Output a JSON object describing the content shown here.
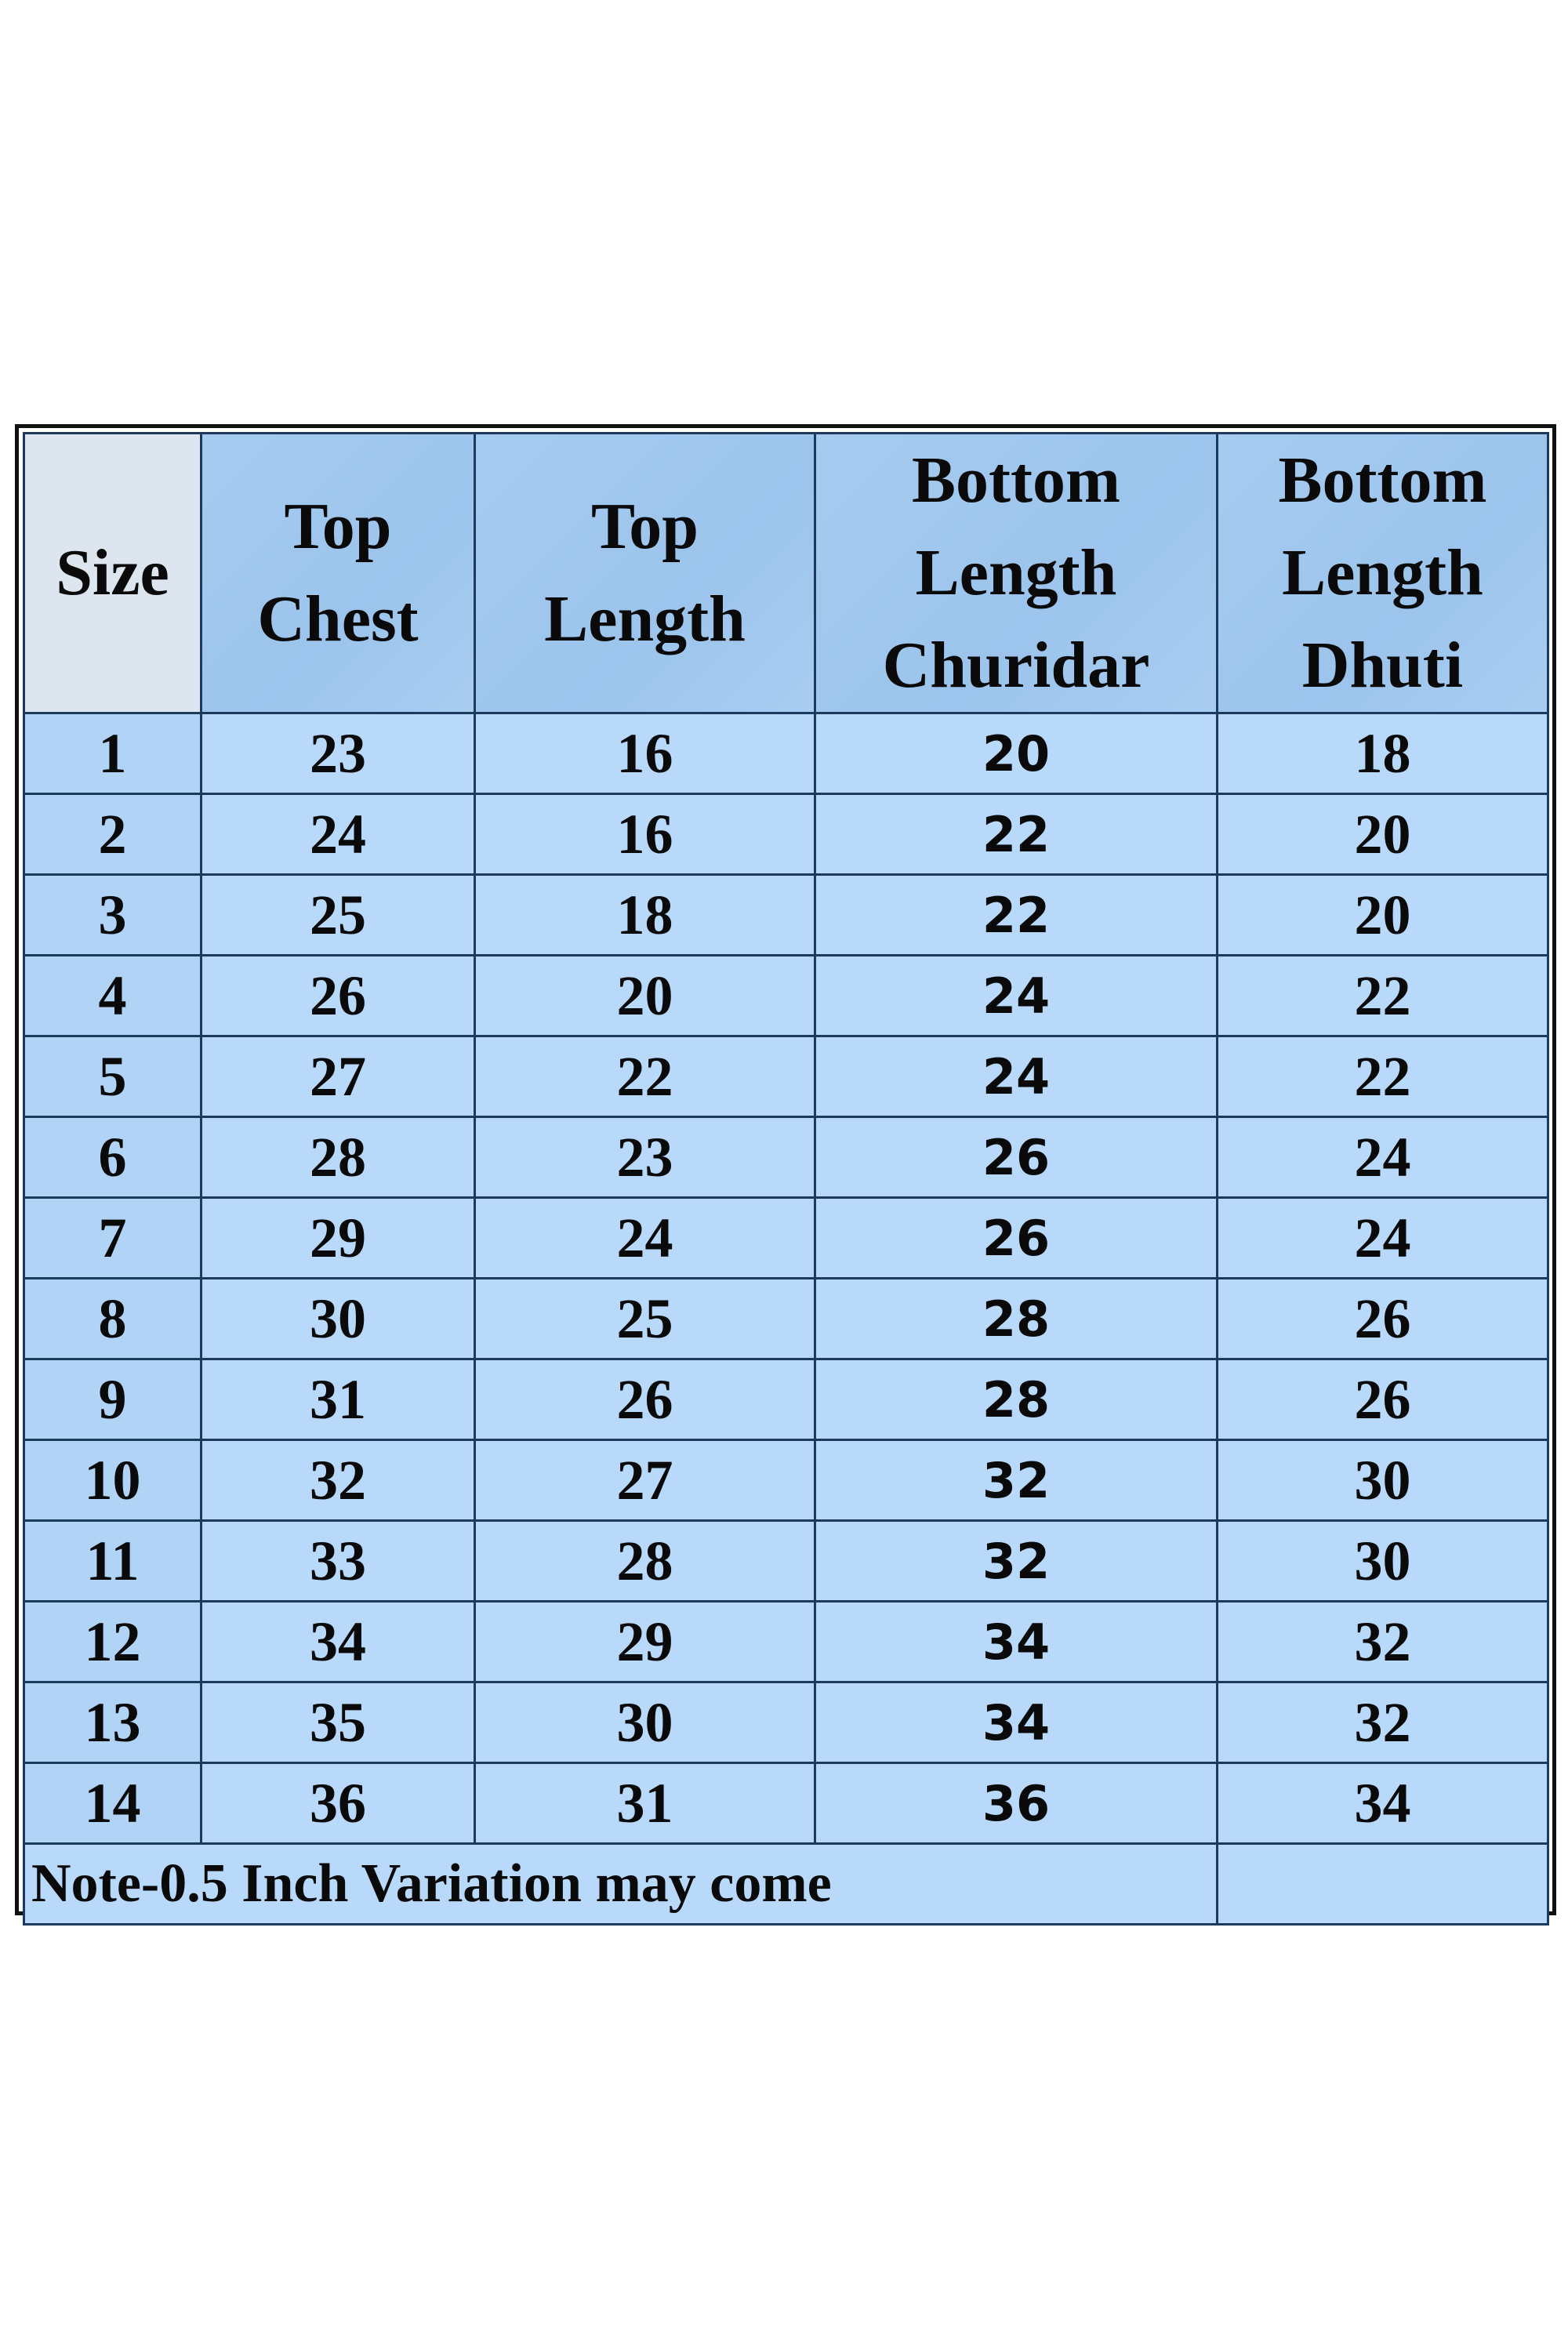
{
  "table": {
    "headers": [
      [
        "Size"
      ],
      [
        "Top",
        "Chest"
      ],
      [
        "Top",
        "Length"
      ],
      [
        "Bottom",
        "Length",
        "Churidar"
      ],
      [
        "Bottom",
        "Length",
        "Dhuti"
      ]
    ],
    "rows": [
      [
        "1",
        "23",
        "16",
        "20",
        "18"
      ],
      [
        "2",
        "24",
        "16",
        "22",
        "20"
      ],
      [
        "3",
        "25",
        "18",
        "22",
        "20"
      ],
      [
        "4",
        "26",
        "20",
        "24",
        "22"
      ],
      [
        "5",
        "27",
        "22",
        "24",
        "22"
      ],
      [
        "6",
        "28",
        "23",
        "26",
        "24"
      ],
      [
        "7",
        "29",
        "24",
        "26",
        "24"
      ],
      [
        "8",
        "30",
        "25",
        "28",
        "26"
      ],
      [
        "9",
        "31",
        "26",
        "28",
        "26"
      ],
      [
        "10",
        "32",
        "27",
        "32",
        "30"
      ],
      [
        "11",
        "33",
        "28",
        "32",
        "30"
      ],
      [
        "12",
        "34",
        "29",
        "34",
        "32"
      ],
      [
        "13",
        "35",
        "30",
        "34",
        "32"
      ],
      [
        "14",
        "36",
        "31",
        "36",
        "34"
      ]
    ],
    "note": "Note-0.5 Inch Variation may come"
  },
  "colors": {
    "header_bg": "#9dc4ec",
    "size_header_bg": "#dde6ef",
    "cell_bg": "#b8d9fa",
    "border": "#1c3a5c"
  }
}
